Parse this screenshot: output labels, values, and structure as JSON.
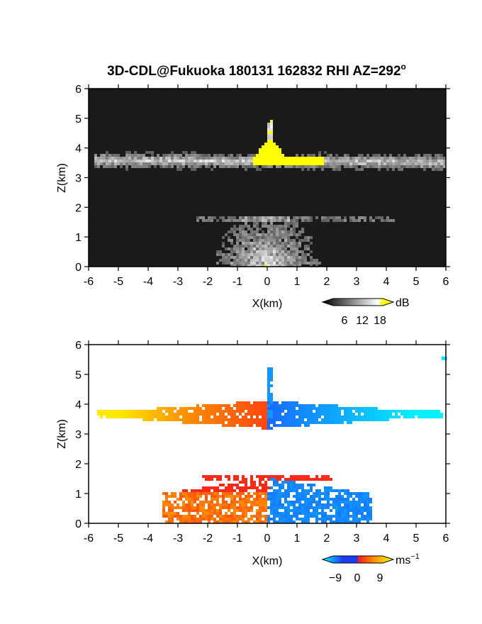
{
  "title": "3D-CDL@Fukuoka 180131 162832 RHI AZ=292",
  "title_superscript": "o",
  "chart_data": [
    {
      "type": "heatmap",
      "quantity": "reflectivity",
      "xlabel": "X(km)",
      "ylabel": "Z(km)",
      "xlim": [
        -6,
        6
      ],
      "ylim": [
        0,
        6
      ],
      "xticks": [
        "-6",
        "-5",
        "-4",
        "-3",
        "-2",
        "-1",
        "0",
        "1",
        "2",
        "3",
        "4",
        "5",
        "6"
      ],
      "yticks": [
        "0",
        "1",
        "2",
        "3",
        "4",
        "5",
        "6"
      ],
      "colorbar": {
        "unit": "dB",
        "ticks": [
          "6",
          "12",
          "18"
        ],
        "tick_values": [
          6,
          12,
          18
        ],
        "range": [
          0,
          21
        ],
        "colors": [
          "#000000",
          "#ffffff",
          "#ffff00"
        ]
      },
      "features": [
        {
          "kind": "layer",
          "z_center": 3.55,
          "x_range": [
            -5.8,
            6.0
          ],
          "value": 11
        },
        {
          "kind": "strong_core",
          "z_range": [
            3.4,
            4.4
          ],
          "x_range": [
            -0.5,
            1.9
          ],
          "value": 19
        },
        {
          "kind": "plume",
          "x": 0.1,
          "z_range": [
            3.5,
            5.3
          ],
          "value": 14
        },
        {
          "kind": "layer",
          "z_center": 1.6,
          "x_range": [
            -2.4,
            4.3
          ],
          "value": 7
        },
        {
          "kind": "near_radar_fan",
          "z_range": [
            0,
            1.7
          ],
          "x_range": [
            -3.8,
            4.0
          ],
          "value": 8
        }
      ]
    },
    {
      "type": "heatmap",
      "quantity": "radial velocity",
      "xlabel": "X(km)",
      "ylabel": "Z(km)",
      "xlim": [
        -6,
        6
      ],
      "ylim": [
        0,
        6
      ],
      "xticks": [
        "-6",
        "-5",
        "-4",
        "-3",
        "-2",
        "-1",
        "0",
        "1",
        "2",
        "3",
        "4",
        "5",
        "6"
      ],
      "yticks": [
        "0",
        "1",
        "2",
        "3",
        "4",
        "5",
        "6"
      ],
      "colorbar": {
        "unit": "ms",
        "unit_superscript": "−1",
        "ticks": [
          "−9",
          "0",
          "9"
        ],
        "tick_values": [
          -9,
          0,
          9
        ],
        "range": [
          -13,
          13
        ],
        "colors": [
          "#00ffff",
          "#1e3cff",
          "#ff1a1a",
          "#ffff00"
        ]
      },
      "features": [
        {
          "kind": "layer",
          "z_center": 3.65,
          "x_range": [
            -5.7,
            5.9
          ],
          "left_value": 10,
          "right_value": -10
        },
        {
          "kind": "plume",
          "x": 0.1,
          "z_range": [
            3.5,
            5.2
          ],
          "value": -6
        },
        {
          "kind": "echo",
          "z_range": [
            0,
            1.7
          ],
          "x_range": [
            -3.5,
            3.7
          ]
        },
        {
          "kind": "patch",
          "x": 5.9,
          "z": 5.55,
          "value": -11
        }
      ]
    }
  ]
}
